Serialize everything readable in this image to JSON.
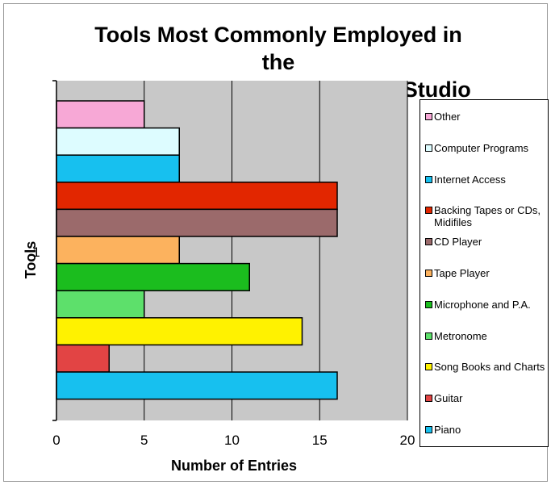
{
  "chart_data": {
    "type": "bar",
    "orientation": "horizontal",
    "title_lines": [
      "Tools Most Commonly Employed in the",
      "Contemporary Voice Teaching Studio"
    ],
    "xlabel": "Number of Entries",
    "ylabel": "Tools",
    "category_label": "1",
    "xlim": [
      0,
      20
    ],
    "x_ticks": [
      "0",
      "5",
      "10",
      "15",
      "20"
    ],
    "grid": true,
    "legend_position": "right",
    "series": [
      {
        "name": "Other",
        "value": 5,
        "color": "#f7a8d6"
      },
      {
        "name": "Computer Programs",
        "value": 7,
        "color": "#ddfcff"
      },
      {
        "name": "Internet Access",
        "value": 7,
        "color": "#17c0ef"
      },
      {
        "name": "Backing Tapes or CDs, Midifiles",
        "value": 16,
        "color": "#e22600"
      },
      {
        "name": "CD Player",
        "value": 16,
        "color": "#9b6a6b"
      },
      {
        "name": "Tape Player",
        "value": 7,
        "color": "#fcb25e"
      },
      {
        "name": "Microphone and P.A.",
        "value": 11,
        "color": "#1bbd1e"
      },
      {
        "name": "Metronome",
        "value": 5,
        "color": "#5de06b"
      },
      {
        "name": "Song Books and Charts",
        "value": 14,
        "color": "#fff200"
      },
      {
        "name": "Guitar",
        "value": 3,
        "color": "#e24444"
      },
      {
        "name": "Piano",
        "value": 16,
        "color": "#17c0ef"
      }
    ]
  }
}
